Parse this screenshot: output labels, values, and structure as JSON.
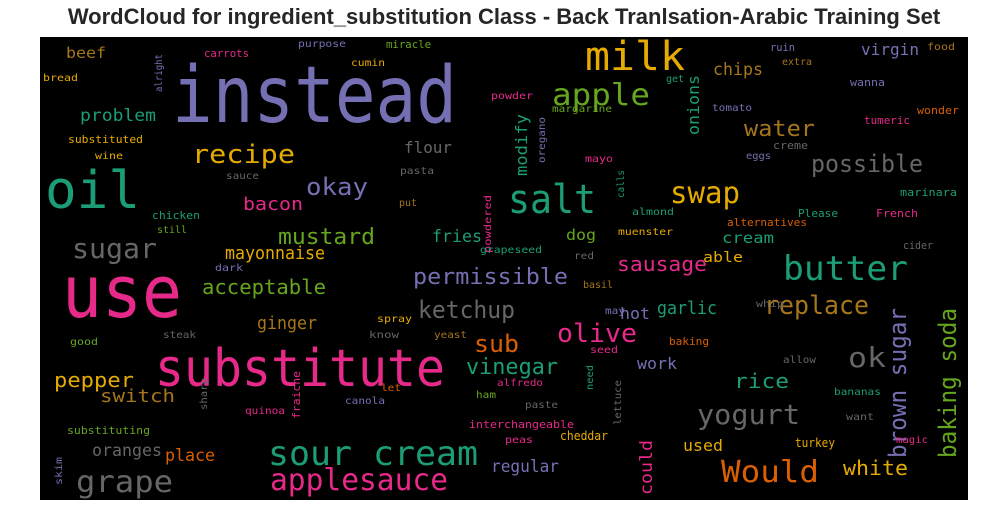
{
  "chart_data": {
    "type": "wordcloud",
    "title": "WordCloud for ingredient_substitution Class - Back Tranlsation-Arabic Training Set",
    "background": "#000000",
    "palette": "Dark2",
    "words": [
      {
        "text": "instead",
        "color": "#7570b3"
      },
      {
        "text": "use",
        "color": "#e7298a"
      },
      {
        "text": "substitute",
        "color": "#e7298a"
      },
      {
        "text": "oil",
        "color": "#1b9e77"
      },
      {
        "text": "milk",
        "color": "#e6ab02"
      },
      {
        "text": "salt",
        "color": "#1b9e77"
      },
      {
        "text": "sour cream",
        "color": "#1b9e77"
      },
      {
        "text": "butter",
        "color": "#1b9e77"
      },
      {
        "text": "applesauce",
        "color": "#e7298a"
      },
      {
        "text": "apple",
        "color": "#66a61e"
      },
      {
        "text": "grape",
        "color": "#666666"
      },
      {
        "text": "Would",
        "color": "#d95f02"
      },
      {
        "text": "swap",
        "color": "#e6ab02"
      },
      {
        "text": "sugar",
        "color": "#666666"
      },
      {
        "text": "yogurt",
        "color": "#666666"
      },
      {
        "text": "replace",
        "color": "#a6761d"
      },
      {
        "text": "recipe",
        "color": "#e6ab02"
      },
      {
        "text": "ok",
        "color": "#666666"
      },
      {
        "text": "olive",
        "color": "#e7298a"
      },
      {
        "text": "ketchup",
        "color": "#666666"
      },
      {
        "text": "possible",
        "color": "#666666"
      },
      {
        "text": "okay",
        "color": "#7570b3"
      },
      {
        "text": "sub",
        "color": "#d95f02"
      },
      {
        "text": "permissible",
        "color": "#7570b3"
      },
      {
        "text": "mustard",
        "color": "#66a61e"
      },
      {
        "text": "vinegar",
        "color": "#1b9e77"
      },
      {
        "text": "brown sugar",
        "color": "#7570b3"
      },
      {
        "text": "baking soda",
        "color": "#66a61e"
      },
      {
        "text": "water",
        "color": "#a6761d"
      },
      {
        "text": "acceptable",
        "color": "#66a61e"
      },
      {
        "text": "pepper",
        "color": "#e6ab02"
      },
      {
        "text": "rice",
        "color": "#1b9e77"
      },
      {
        "text": "sausage",
        "color": "#e7298a"
      },
      {
        "text": "white",
        "color": "#e6ab02"
      },
      {
        "text": "mayonnaise",
        "color": "#e6ab02"
      },
      {
        "text": "bacon",
        "color": "#e7298a"
      },
      {
        "text": "ginger",
        "color": "#a6761d"
      },
      {
        "text": "switch",
        "color": "#a6761d"
      },
      {
        "text": "garlic",
        "color": "#1b9e77"
      },
      {
        "text": "regular",
        "color": "#7570b3"
      },
      {
        "text": "chips",
        "color": "#a6761d"
      },
      {
        "text": "fries",
        "color": "#1b9e77"
      },
      {
        "text": "problem",
        "color": "#1b9e77"
      },
      {
        "text": "oranges",
        "color": "#666666"
      },
      {
        "text": "place",
        "color": "#d95f02"
      },
      {
        "text": "used",
        "color": "#e6ab02"
      },
      {
        "text": "work",
        "color": "#7570b3"
      },
      {
        "text": "hot",
        "color": "#7570b3"
      },
      {
        "text": "could",
        "color": "#e7298a"
      },
      {
        "text": "onions",
        "color": "#1b9e77"
      },
      {
        "text": "modify",
        "color": "#1b9e77"
      },
      {
        "text": "flour",
        "color": "#666666"
      },
      {
        "text": "virgin",
        "color": "#7570b3"
      },
      {
        "text": "beef",
        "color": "#a6761d"
      },
      {
        "text": "cream",
        "color": "#1b9e77"
      },
      {
        "text": "able",
        "color": "#e6ab02"
      },
      {
        "text": "dog",
        "color": "#66a61e"
      },
      {
        "text": "fraiche",
        "color": "#e7298a"
      },
      {
        "text": "cheddar",
        "color": "#e6ab02"
      },
      {
        "text": "turkey",
        "color": "#e6ab02"
      },
      {
        "text": "carrots",
        "color": "#e7298a"
      },
      {
        "text": "purpose",
        "color": "#7570b3"
      },
      {
        "text": "miracle",
        "color": "#66a61e"
      },
      {
        "text": "ruin",
        "color": "#7570b3"
      },
      {
        "text": "food",
        "color": "#a6761d"
      },
      {
        "text": "bread",
        "color": "#e6ab02"
      },
      {
        "text": "alright",
        "color": "#7570b3"
      },
      {
        "text": "cumin",
        "color": "#e6ab02"
      },
      {
        "text": "get",
        "color": "#1b9e77"
      },
      {
        "text": "extra",
        "color": "#a6761d"
      },
      {
        "text": "wanna",
        "color": "#7570b3"
      },
      {
        "text": "powder",
        "color": "#e7298a"
      },
      {
        "text": "margarine",
        "color": "#66a61e"
      },
      {
        "text": "tomato",
        "color": "#7570b3"
      },
      {
        "text": "wonder",
        "color": "#d95f02"
      },
      {
        "text": "tumeric",
        "color": "#e7298a"
      },
      {
        "text": "oregano",
        "color": "#7570b3"
      },
      {
        "text": "substituted",
        "color": "#e6ab02"
      },
      {
        "text": "wine",
        "color": "#e6ab02"
      },
      {
        "text": "mayo",
        "color": "#e7298a"
      },
      {
        "text": "creme",
        "color": "#666666"
      },
      {
        "text": "eggs",
        "color": "#7570b3"
      },
      {
        "text": "sauce",
        "color": "#666666"
      },
      {
        "text": "pasta",
        "color": "#666666"
      },
      {
        "text": "calls",
        "color": "#1b9e77"
      },
      {
        "text": "marinara",
        "color": "#1b9e77"
      },
      {
        "text": "powdered",
        "color": "#e7298a"
      },
      {
        "text": "put",
        "color": "#a6761d"
      },
      {
        "text": "almond",
        "color": "#1b9e77"
      },
      {
        "text": "Please",
        "color": "#1b9e77"
      },
      {
        "text": "French",
        "color": "#e7298a"
      },
      {
        "text": "chicken",
        "color": "#1b9e77"
      },
      {
        "text": "still",
        "color": "#66a61e"
      },
      {
        "text": "alternatives",
        "color": "#d95f02"
      },
      {
        "text": "muenster",
        "color": "#e6ab02"
      },
      {
        "text": "grapeseed",
        "color": "#1b9e77"
      },
      {
        "text": "cider",
        "color": "#666666"
      },
      {
        "text": "dark",
        "color": "#7570b3"
      },
      {
        "text": "red",
        "color": "#666666"
      },
      {
        "text": "basil",
        "color": "#a6761d"
      },
      {
        "text": "whip",
        "color": "#666666"
      },
      {
        "text": "spray",
        "color": "#e6ab02"
      },
      {
        "text": "may",
        "color": "#7570b3"
      },
      {
        "text": "steak",
        "color": "#666666"
      },
      {
        "text": "know",
        "color": "#666666"
      },
      {
        "text": "yeast",
        "color": "#a6761d"
      },
      {
        "text": "baking",
        "color": "#d95f02"
      },
      {
        "text": "good",
        "color": "#66a61e"
      },
      {
        "text": "seed",
        "color": "#e7298a"
      },
      {
        "text": "allow",
        "color": "#666666"
      },
      {
        "text": "alfredo",
        "color": "#e7298a"
      },
      {
        "text": "need",
        "color": "#1b9e77"
      },
      {
        "text": "bananas",
        "color": "#1b9e77"
      },
      {
        "text": "sharp",
        "color": "#666666"
      },
      {
        "text": "quinoa",
        "color": "#e7298a"
      },
      {
        "text": "canola",
        "color": "#7570b3"
      },
      {
        "text": "ham",
        "color": "#66a61e"
      },
      {
        "text": "paste",
        "color": "#666666"
      },
      {
        "text": "lettuce",
        "color": "#666666"
      },
      {
        "text": "let",
        "color": "#d95f02"
      },
      {
        "text": "want",
        "color": "#666666"
      },
      {
        "text": "substituting",
        "color": "#66a61e"
      },
      {
        "text": "interchangeable",
        "color": "#e7298a"
      },
      {
        "text": "peas",
        "color": "#e7298a"
      },
      {
        "text": "magic",
        "color": "#e7298a"
      },
      {
        "text": "skim",
        "color": "#7570b3"
      }
    ]
  }
}
